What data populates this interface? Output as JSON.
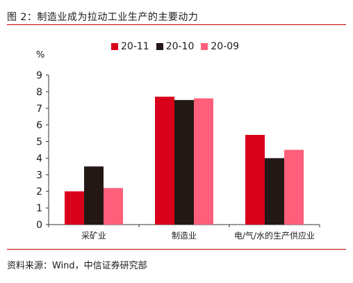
{
  "title": "图 2：制造业成为拉动工业生产的主要动力",
  "source": "资料来源：Wind，中信证券研究部",
  "colors": {
    "accent": "#c00000"
  },
  "chart_data": {
    "type": "bar",
    "ylabel": "%",
    "ylim": [
      0,
      9
    ],
    "yticks": [
      0,
      1,
      2,
      3,
      4,
      5,
      6,
      7,
      8,
      9
    ],
    "categories": [
      "采矿业",
      "制造业",
      "电/气/水的生产供应业"
    ],
    "series": [
      {
        "name": "20-11",
        "color": "#d9001b",
        "values": [
          2.0,
          7.7,
          5.4
        ]
      },
      {
        "name": "20-10",
        "color": "#231815",
        "values": [
          3.5,
          7.5,
          4.0
        ]
      },
      {
        "name": "20-09",
        "color": "#ff5f7a",
        "values": [
          2.2,
          7.6,
          4.5
        ]
      }
    ],
    "legend_position": "top"
  }
}
